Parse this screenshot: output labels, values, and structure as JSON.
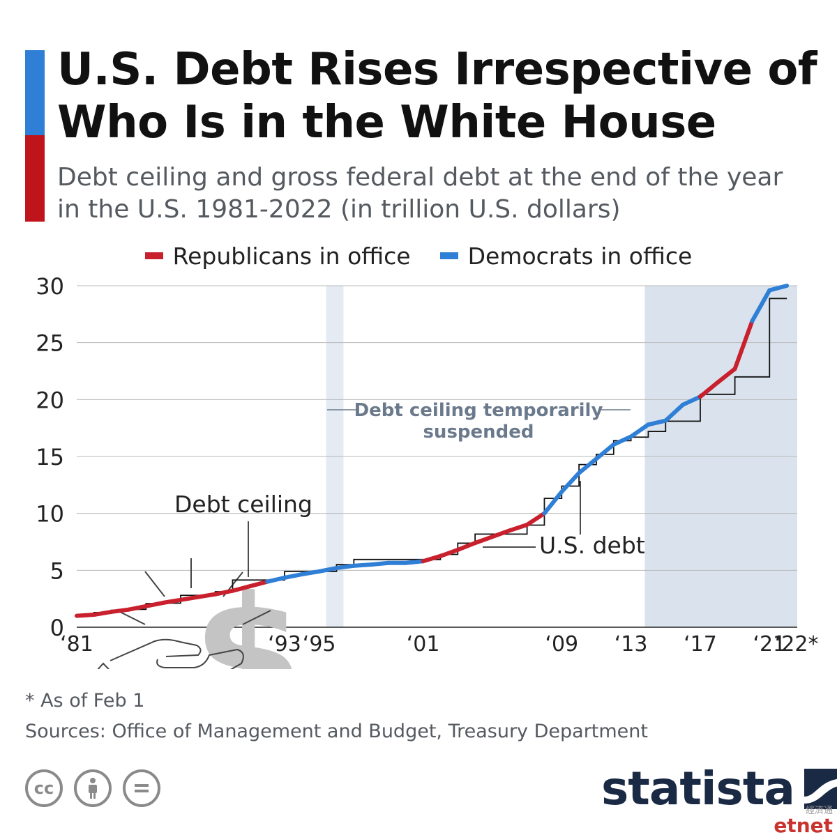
{
  "header": {
    "title_line1": "U.S. Debt Rises Irrespective of",
    "title_line2": "Who Is in the White House",
    "subtitle_line1": "Debt ceiling and gross federal debt at the end of the year",
    "subtitle_line2": "in the U.S. 1981-2022 (in trillion U.S. dollars)"
  },
  "colors": {
    "republicans": "#c8202d",
    "democrats": "#2f7fd6",
    "ceiling": "#111111",
    "shade_suspended": "#e4ebf3",
    "shade_recent": "#dae3ed",
    "grid": "#b8b8b8",
    "annotation": "#6a7a8c",
    "title_bar_top": "#2f7fd6",
    "title_bar_bottom": "#c0141c"
  },
  "legend": {
    "republicans": "Republicans in office",
    "democrats": "Democrats in office"
  },
  "footer": {
    "note": "* As of Feb 1",
    "sources": "Sources: Office of Management and Budget, Treasury Department",
    "brand": "statista",
    "watermark_cn": "經濟通",
    "watermark_logo": "etnet",
    "license_icons": [
      "creative-commons-icon",
      "attribution-icon",
      "no-derivatives-icon"
    ]
  },
  "chart_data": {
    "type": "line",
    "title": "",
    "xlabel": "",
    "ylabel": "",
    "xlim": [
      1981,
      2022
    ],
    "ylim": [
      0,
      30
    ],
    "y_ticks": [
      0,
      5,
      10,
      15,
      20,
      25,
      30
    ],
    "x_tick_labels": [
      {
        "x": 1981,
        "label": "‘81"
      },
      {
        "x": 1993,
        "label": "‘93"
      },
      {
        "x": 1995,
        "label": "‘95"
      },
      {
        "x": 2001,
        "label": "‘01"
      },
      {
        "x": 2009,
        "label": "‘09"
      },
      {
        "x": 2013,
        "label": "‘13"
      },
      {
        "x": 2017,
        "label": "‘17"
      },
      {
        "x": 2021,
        "label": "‘21"
      },
      {
        "x": 2022,
        "label": "‘22*"
      }
    ],
    "grid": "horizontal",
    "legend_position": "top-center",
    "shaded_periods": [
      [
        1995.4,
        1996.4
      ],
      [
        2013.8,
        2023.0
      ]
    ],
    "series": [
      {
        "name": "U.S. debt",
        "x": [
          1981,
          1982,
          1983,
          1984,
          1985,
          1986,
          1987,
          1988,
          1989,
          1990,
          1991,
          1992,
          1993,
          1994,
          1995,
          1996,
          1997,
          1998,
          1999,
          2000,
          2001,
          2002,
          2003,
          2004,
          2005,
          2006,
          2007,
          2008,
          2009,
          2010,
          2011,
          2012,
          2013,
          2014,
          2015,
          2016,
          2017,
          2018,
          2019,
          2020,
          2021,
          2022
        ],
        "y": [
          1.0,
          1.1,
          1.35,
          1.55,
          1.85,
          2.15,
          2.4,
          2.65,
          2.9,
          3.2,
          3.6,
          4.0,
          4.35,
          4.65,
          4.9,
          5.2,
          5.4,
          5.5,
          5.65,
          5.65,
          5.8,
          6.25,
          6.8,
          7.4,
          7.95,
          8.5,
          9.0,
          10.0,
          11.9,
          13.55,
          14.8,
          16.05,
          16.75,
          17.8,
          18.15,
          19.55,
          20.25,
          21.5,
          22.7,
          26.9,
          29.6,
          30.0
        ],
        "party": [
          "R",
          "R",
          "R",
          "R",
          "R",
          "R",
          "R",
          "R",
          "R",
          "R",
          "R",
          "R",
          "D",
          "D",
          "D",
          "D",
          "D",
          "D",
          "D",
          "D",
          "D",
          "R",
          "R",
          "R",
          "R",
          "R",
          "R",
          "R",
          "D",
          "D",
          "D",
          "D",
          "D",
          "D",
          "D",
          "D",
          "D",
          "R",
          "R",
          "R",
          "D",
          "D"
        ]
      },
      {
        "name": "Debt ceiling",
        "x": [
          1981,
          1982,
          1983,
          1984,
          1985,
          1986,
          1987,
          1988,
          1989,
          1990,
          1991,
          1992,
          1993,
          1994,
          1995,
          1996,
          1997,
          1998,
          1999,
          2000,
          2001,
          2002,
          2003,
          2004,
          2005,
          2006,
          2007,
          2008,
          2009,
          2010,
          2011,
          2012,
          2013,
          2014,
          2015,
          2016,
          2017,
          2018,
          2019,
          2020,
          2021,
          2022
        ],
        "y": [
          1.08,
          1.29,
          1.49,
          1.57,
          2.08,
          2.11,
          2.8,
          2.8,
          3.12,
          4.15,
          4.15,
          4.15,
          4.9,
          4.9,
          4.9,
          5.5,
          5.95,
          5.95,
          5.95,
          5.95,
          5.95,
          6.4,
          7.38,
          8.18,
          8.18,
          8.18,
          8.97,
          11.32,
          12.4,
          14.29,
          15.19,
          16.39,
          16.7,
          17.2,
          18.1,
          18.1,
          20.46,
          20.46,
          21.99,
          21.99,
          28.88,
          28.88
        ]
      }
    ],
    "annotations": [
      "Debt ceiling",
      "U.S. debt",
      "Debt ceiling temporarily",
      "suspended"
    ]
  }
}
